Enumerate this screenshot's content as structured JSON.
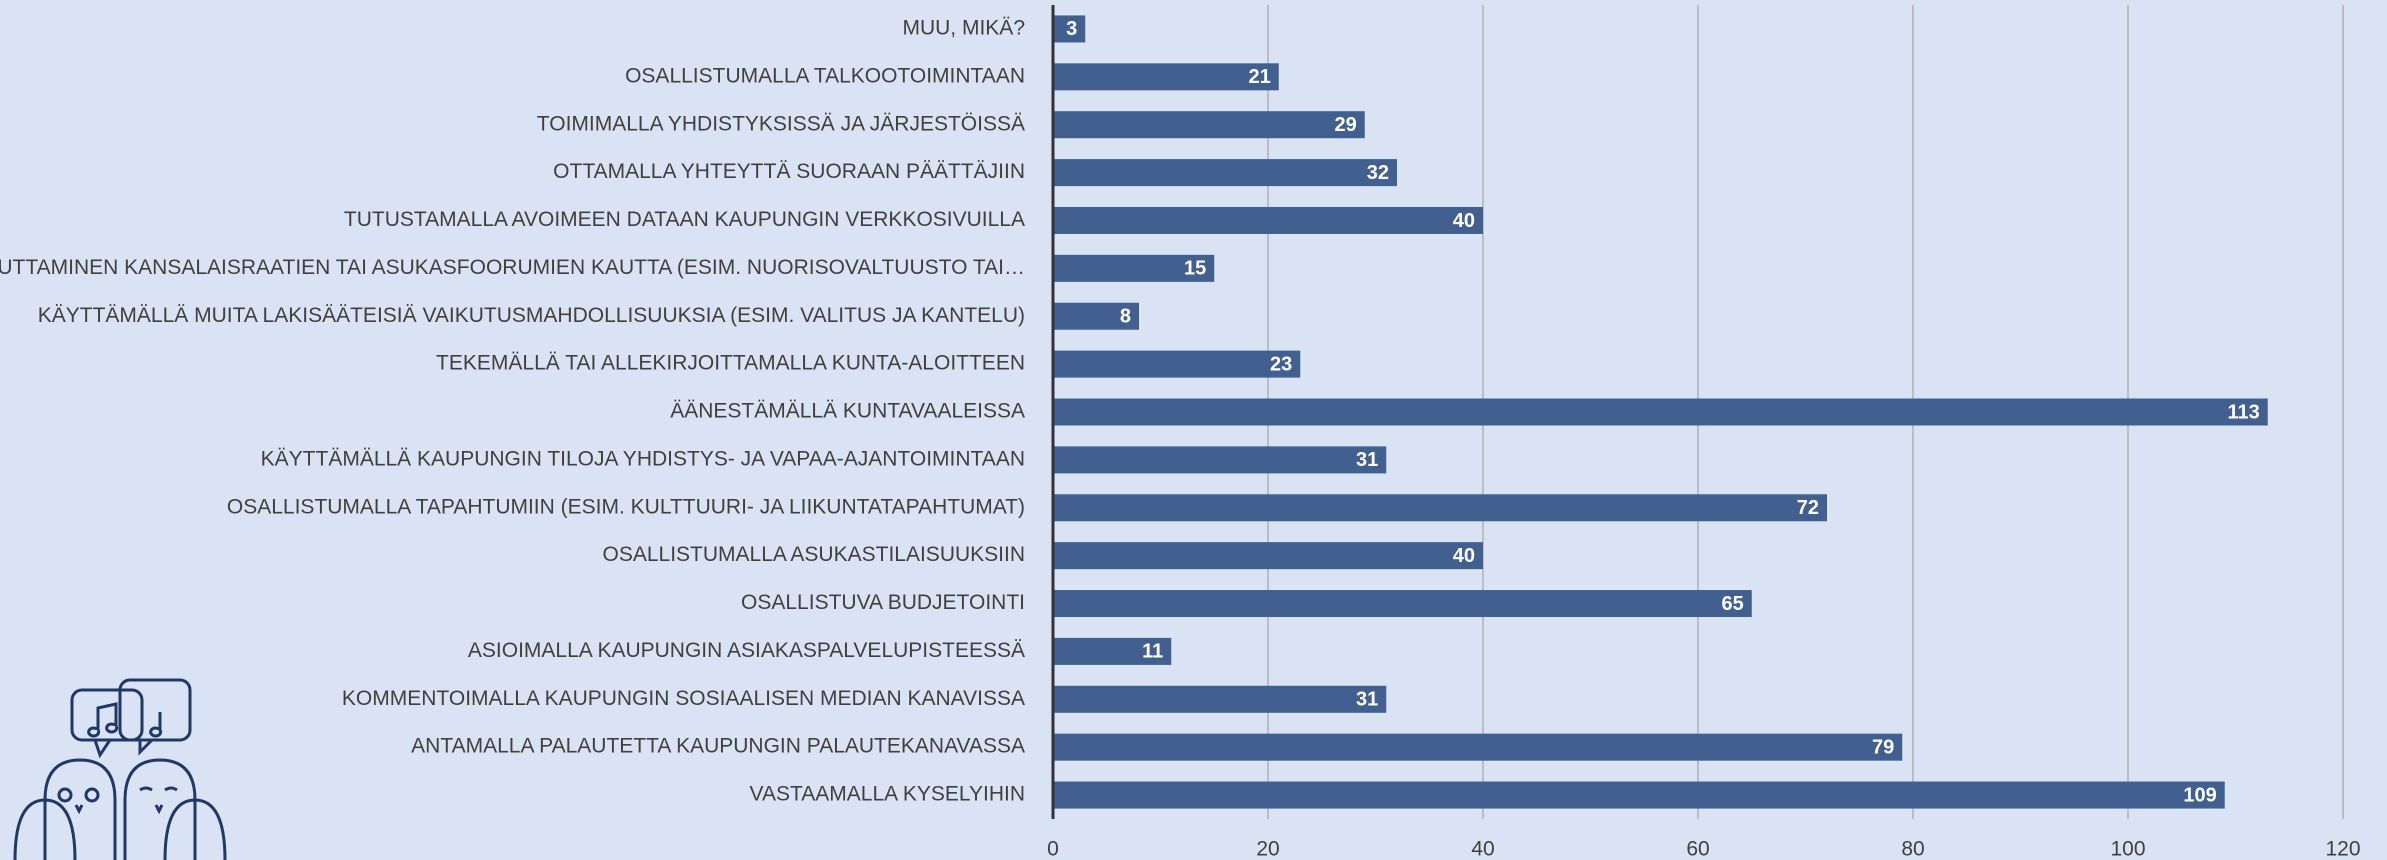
{
  "chart_data": {
    "type": "barh",
    "categories": [
      "MUU, MIKÄ?",
      "OSALLISTUMALLA TALKOOTOIMINTAAN",
      "TOIMIMALLA YHDISTYKSISSÄ JA JÄRJESTÖISSÄ",
      "OTTAMALLA YHTEYTTÄ SUORAAN PÄÄTTÄJIIN",
      "TUTUSTAMALLA AVOIMEEN DATAAN KAUPUNGIN VERKKOSIVUILLA",
      "VAIKUTTAMINEN KANSALAISRAATIEN TAI ASUKASFOORUMIEN KAUTTA (ESIM. NUORISOVALTUUSTO TAI…",
      "KÄYTTÄMÄLLÄ MUITA LAKISÄÄTEISIÄ VAIKUTUSMAHDOLLISUUKSIA (ESIM. VALITUS JA KANTELU)",
      "TEKEMÄLLÄ TAI ALLEKIRJOITTAMALLA KUNTA-ALOITTEEN",
      "ÄÄNESTÄMÄLLÄ KUNTAVAALEISSA",
      "KÄYTTÄMÄLLÄ KAUPUNGIN TILOJA YHDISTYS- JA VAPAA-AJANTOIMINTAAN",
      "OSALLISTUMALLA TAPAHTUMIIN (ESIM. KULTTUURI- JA LIIKUNTATAPAHTUMAT)",
      "OSALLISTUMALLA ASUKASTILAISUUKSIIN",
      "OSALLISTUVA BUDJETOINTI",
      "ASIOIMALLA KAUPUNGIN ASIAKASPALVELUPISTEESSÄ",
      "KOMMENTOIMALLA KAUPUNGIN SOSIAALISEN MEDIAN KANAVISSA",
      "ANTAMALLA PALAUTETTA KAUPUNGIN PALAUTEKANAVASSA",
      "VASTAAMALLA KYSELYIHIN"
    ],
    "values": [
      3,
      21,
      29,
      32,
      40,
      15,
      8,
      23,
      113,
      31,
      72,
      40,
      65,
      11,
      31,
      79,
      109
    ],
    "color": "#41608f",
    "xlim": [
      0,
      120
    ],
    "xticks": [
      0,
      20,
      40,
      60,
      80,
      100,
      120
    ],
    "grid": true
  }
}
